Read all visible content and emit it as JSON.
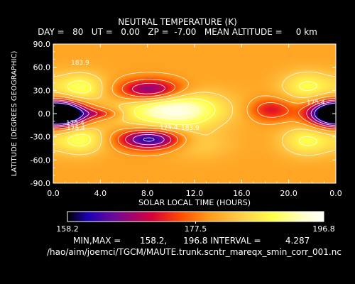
{
  "header": {
    "title": "NEUTRAL TEMPERATURE (K)",
    "subtitle": "DAY =   80   UT =   0.00   ZP =  -7.00   MEAN ALTITUDE =     0 km"
  },
  "footer": {
    "stats": "MIN,MAX =       158.2,      196.8 INTERVAL =         4.287",
    "path": "/hao/aim/joemci/TGCM/MAUTE.trunk.scntr_mareqx_smin_corr_001.nc"
  },
  "colorbar": {
    "labels": [
      "158.2",
      "177.5",
      "196.8"
    ],
    "colors": [
      "#000000",
      "#1a00b4",
      "#6a0a9a",
      "#d8003a",
      "#ff4a00",
      "#ff9a1a",
      "#ffcf4a",
      "#ffff4a",
      "#ffffc8",
      "#ffffff"
    ]
  },
  "chart_data": {
    "type": "heatmap",
    "title": "NEUTRAL TEMPERATURE (K)",
    "xlabel": "SOLAR LOCAL TIME (HOURS)",
    "ylabel": "LATITUDE (DEGREES GEOGRAPHIC)",
    "xlim": [
      0,
      24
    ],
    "ylim": [
      -90,
      90
    ],
    "x_ticks": [
      "0.0",
      "4.0",
      "8.0",
      "12.0",
      "16.0",
      "20.0",
      "0.0"
    ],
    "y_ticks": [
      "90.0",
      "60.0",
      "30.0",
      "0.0",
      "-30.0",
      "-60.0",
      "-90.0"
    ],
    "zlim": [
      158.2,
      196.8
    ],
    "contour_interval": 4.287,
    "background_value": 180.5,
    "features": [
      {
        "lt": 0.3,
        "lat": 0,
        "value": 158.5
      },
      {
        "lt": 24.3,
        "lat": 0,
        "value": 158.5
      },
      {
        "lt": 8.2,
        "lat": -33,
        "value": 160.5
      },
      {
        "lt": 8.3,
        "lat": 30,
        "value": 163.5
      },
      {
        "lt": 18.5,
        "lat": 5,
        "value": 171.5
      },
      {
        "lt": 4.0,
        "lat": 0,
        "value": 173.0
      },
      {
        "lt": 10.2,
        "lat": 5,
        "value": 196.0
      },
      {
        "lt": 2.3,
        "lat": 33,
        "value": 190.0
      },
      {
        "lt": 2.3,
        "lat": -33,
        "value": 190.0
      },
      {
        "lt": 21.6,
        "lat": 35,
        "value": 189.0
      },
      {
        "lt": 21.6,
        "lat": -35,
        "value": 189.0
      },
      {
        "lt": 12.5,
        "lat": -40,
        "value": 184.0
      }
    ],
    "contour_labels": [
      "183.9",
      "175.4",
      "175.4",
      "183.9",
      "175.4",
      "175.4"
    ]
  }
}
